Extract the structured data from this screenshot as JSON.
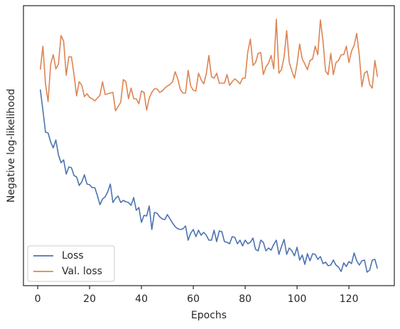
{
  "chart_data": {
    "type": "line",
    "xlabel": "Epochs",
    "ylabel": "Negative log-likelihood",
    "xlim": [
      -5.5,
      137.5
    ],
    "xticks": [
      0,
      20,
      40,
      60,
      80,
      100,
      120
    ],
    "ylim": [
      0,
      394
    ],
    "legend": "lower left",
    "x": [
      1,
      2,
      3,
      4,
      5,
      6,
      7,
      8,
      9,
      10,
      11,
      12,
      13,
      14,
      15,
      16,
      17,
      18,
      19,
      20,
      21,
      22,
      23,
      24,
      25,
      26,
      27,
      28,
      29,
      30,
      31,
      32,
      33,
      34,
      35,
      36,
      37,
      38,
      39,
      40,
      41,
      42,
      43,
      44,
      45,
      46,
      47,
      48,
      49,
      50,
      51,
      52,
      53,
      54,
      55,
      56,
      57,
      58,
      59,
      60,
      61,
      62,
      63,
      64,
      65,
      66,
      67,
      68,
      69,
      70,
      71,
      72,
      73,
      74,
      75,
      76,
      77,
      78,
      79,
      80,
      81,
      82,
      83,
      84,
      85,
      86,
      87,
      88,
      89,
      90,
      91,
      92,
      93,
      94,
      95,
      96,
      97,
      98,
      99,
      100,
      101,
      102,
      103,
      104,
      105,
      106,
      107,
      108,
      109,
      110,
      111,
      112,
      113,
      114,
      115,
      116,
      117,
      118,
      119,
      120,
      121,
      122,
      123,
      124,
      125,
      126,
      127,
      128,
      129,
      130,
      131
    ],
    "series": [
      {
        "name": "Loss",
        "color": "#4c72b0",
        "values": [
          276,
          247,
          216,
          215,
          202,
          194,
          205,
          184,
          173,
          177,
          157,
          167,
          166,
          155,
          153,
          141,
          146,
          156,
          143,
          142,
          138,
          138,
          127,
          114,
          122,
          125,
          132,
          143,
          117,
          123,
          126,
          117,
          120,
          118,
          117,
          113,
          124,
          106,
          110,
          89,
          99,
          98,
          112,
          79,
          103,
          102,
          97,
          94,
          93,
          100,
          94,
          88,
          83,
          80,
          79,
          80,
          84,
          64,
          74,
          79,
          69,
          78,
          71,
          75,
          71,
          64,
          64,
          78,
          62,
          77,
          76,
          62,
          61,
          59,
          69,
          68,
          59,
          64,
          56,
          64,
          59,
          61,
          67,
          51,
          49,
          64,
          61,
          49,
          53,
          50,
          58,
          64,
          44,
          55,
          65,
          44,
          53,
          49,
          42,
          54,
          36,
          43,
          30,
          45,
          35,
          45,
          44,
          37,
          41,
          31,
          33,
          28,
          29,
          36,
          29,
          26,
          20,
          32,
          27,
          34,
          31,
          46,
          35,
          29,
          35,
          36,
          19,
          22,
          36,
          37,
          24
        ]
      },
      {
        "name": "Val. loss",
        "color": "#dd8452",
        "values": [
          304,
          337,
          284,
          259,
          312,
          325,
          305,
          312,
          352,
          344,
          296,
          322,
          322,
          297,
          267,
          287,
          282,
          266,
          270,
          265,
          263,
          260,
          264,
          268,
          287,
          269,
          270,
          271,
          272,
          246,
          252,
          258,
          290,
          287,
          263,
          278,
          263,
          263,
          256,
          274,
          272,
          247,
          264,
          272,
          277,
          277,
          272,
          274,
          278,
          281,
          283,
          287,
          301,
          291,
          276,
          271,
          271,
          303,
          281,
          275,
          274,
          299,
          290,
          284,
          298,
          324,
          294,
          292,
          299,
          285,
          285,
          285,
          297,
          282,
          287,
          291,
          288,
          284,
          292,
          292,
          329,
          347,
          310,
          314,
          327,
          328,
          297,
          308,
          313,
          324,
          305,
          375,
          299,
          304,
          322,
          359,
          314,
          302,
          292,
          312,
          340,
          319,
          312,
          304,
          317,
          319,
          337,
          325,
          374,
          344,
          302,
          297,
          327,
          297,
          314,
          317,
          325,
          325,
          337,
          314,
          330,
          338,
          355,
          324,
          280,
          299,
          302,
          283,
          278,
          317,
          294
        ]
      }
    ]
  }
}
